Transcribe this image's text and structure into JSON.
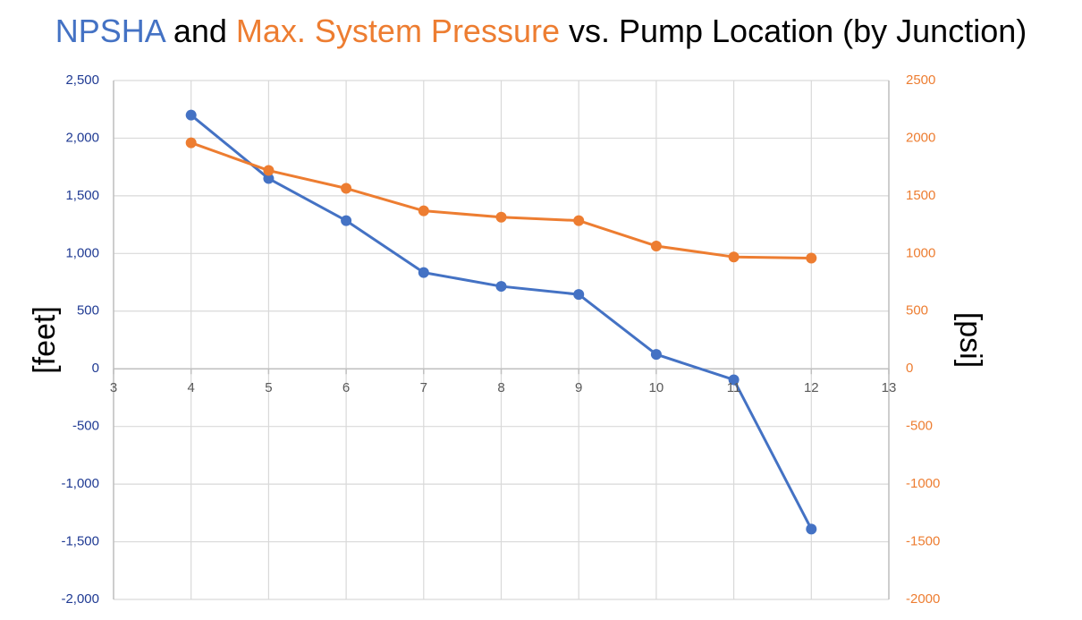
{
  "title": {
    "part1": "NPSHA",
    "part2": " and ",
    "part3": "Max. System Pressure",
    "part4": " vs. Pump Location (by Junction)"
  },
  "colors": {
    "npsha": "#4472C4",
    "pressure": "#ED7D31",
    "left_axis_text": "#1F3A93",
    "grid": "#D9D9D9",
    "axis": "#BFBFBF"
  },
  "chart_data": {
    "type": "line",
    "title": "NPSHA and Max. System Pressure vs. Pump Location (by Junction)",
    "xlabel": "",
    "ylabel": "[feet]",
    "y2label": "[psi]",
    "xlim": [
      3,
      13
    ],
    "ylim": [
      -2000,
      2500
    ],
    "y2lim": [
      -2000,
      2500
    ],
    "x_ticks": [
      "3",
      "4",
      "5",
      "6",
      "7",
      "8",
      "9",
      "10",
      "11",
      "12",
      "13"
    ],
    "y_ticks": [
      "2,500",
      "2,000",
      "1,500",
      "1,000",
      "500",
      "0",
      "-500",
      "-1,000",
      "-1,500",
      "-2,000"
    ],
    "y2_ticks": [
      "2500",
      "2000",
      "1500",
      "1000",
      "500",
      "0",
      "-500",
      "-1000",
      "-1500",
      "-2000"
    ],
    "grid": true,
    "series": [
      {
        "name": "NPSHA",
        "axis": "left",
        "x": [
          4,
          5,
          6,
          7,
          8,
          9,
          10,
          11,
          12
        ],
        "y": [
          2200,
          1650,
          1285,
          835,
          715,
          645,
          125,
          -95,
          -1390
        ]
      },
      {
        "name": "Max. System Pressure",
        "axis": "right",
        "x": [
          4,
          5,
          6,
          7,
          8,
          9,
          10,
          11,
          12
        ],
        "y": [
          1960,
          1720,
          1565,
          1370,
          1315,
          1285,
          1065,
          970,
          960
        ]
      }
    ]
  }
}
